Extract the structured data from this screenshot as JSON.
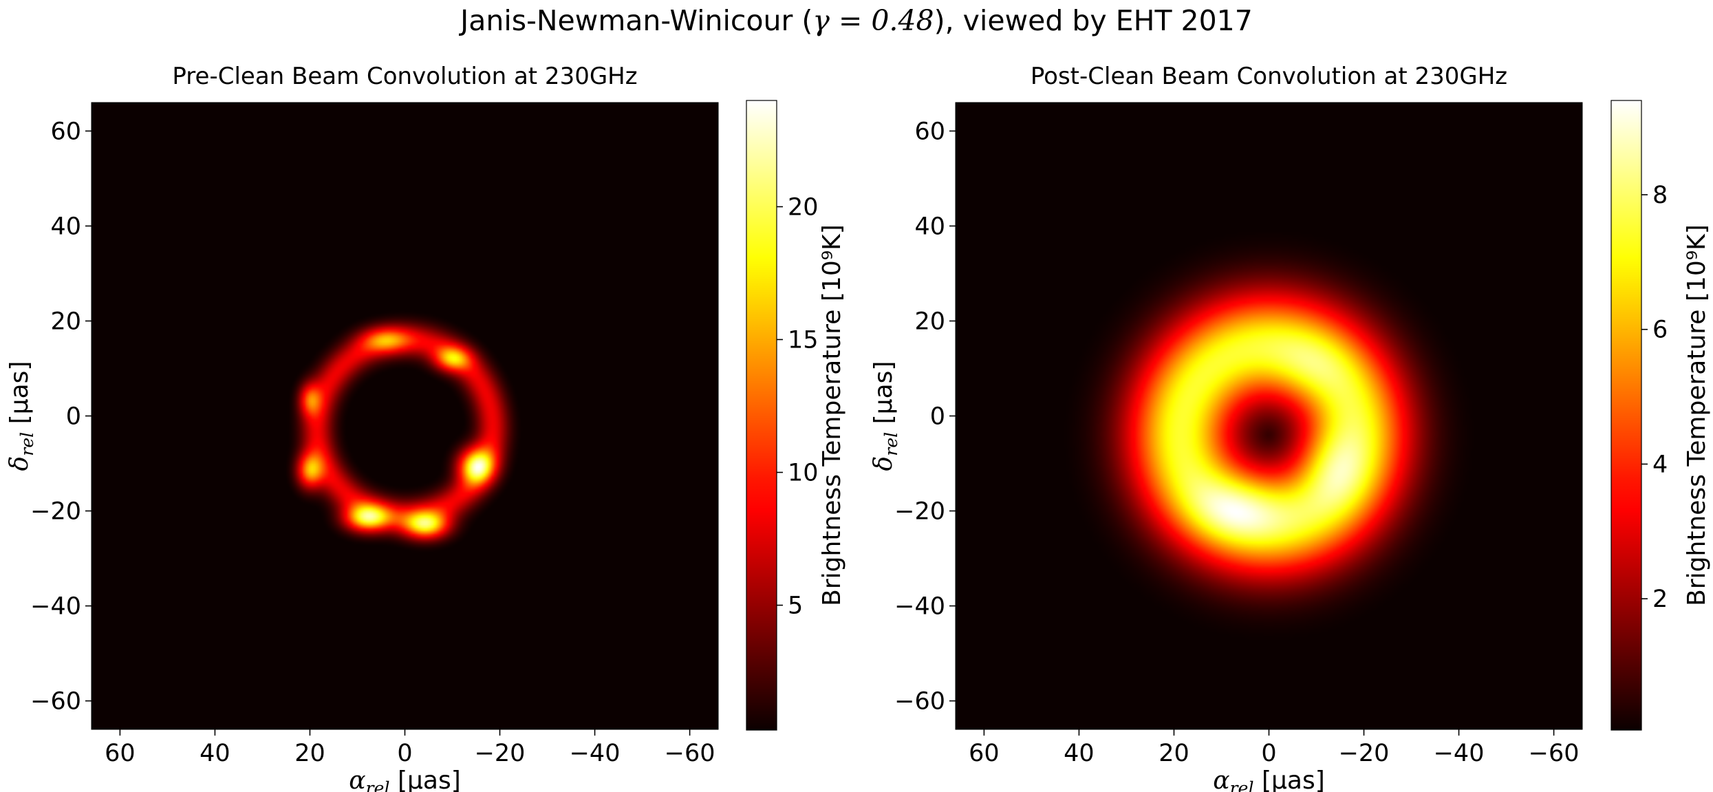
{
  "figure": {
    "suptitle_prefix": "Janis-Newman-Winicour (",
    "suptitle_math": "γ = 0.48",
    "suptitle_suffix": "), viewed by EHT 2017"
  },
  "colormap": {
    "name": "hot",
    "stops": [
      "#0b0000",
      "#ff0000",
      "#ffff00",
      "#ffffff"
    ]
  },
  "chart_data": [
    {
      "type": "heatmap",
      "title": "Pre-Clean Beam Convolution at 230GHz",
      "xlabel": "α_rel [μas]",
      "ylabel": "δ_rel [μas]",
      "xlim": [
        66,
        -66
      ],
      "ylim": [
        -66,
        66
      ],
      "xticks": [
        60,
        40,
        20,
        0,
        -20,
        -40,
        -60
      ],
      "xtick_labels": [
        "60",
        "40",
        "20",
        "0",
        "−20",
        "−40",
        "−60"
      ],
      "yticks": [
        60,
        40,
        20,
        0,
        -20,
        -40,
        -60
      ],
      "ytick_labels": [
        "60",
        "40",
        "20",
        "0",
        "−20",
        "−40",
        "−60"
      ],
      "colorbar": {
        "label": "Brightness Temperature [10⁹K]",
        "range": [
          0.3,
          24
        ],
        "ticks": [
          5,
          10,
          15,
          20
        ],
        "tick_labels": [
          "5",
          "10",
          "15",
          "20"
        ]
      },
      "features": {
        "ring": {
          "center": [
            0,
            -2.5
          ],
          "radius": 18.5,
          "width_sigma": 2.4,
          "peak": 11.5
        },
        "hotspots": [
          {
            "center": [
              8,
              -21.5
            ],
            "peak": 23,
            "sigma": [
              3.3,
              2.0
            ]
          },
          {
            "center": [
              -4.5,
              -23
            ],
            "peak": 23,
            "sigma": [
              3.3,
              2.0
            ]
          },
          {
            "center": [
              -15,
              -10.5
            ],
            "peak": 24,
            "sigma": [
              2.6,
              2.6
            ]
          },
          {
            "center": [
              20,
              -11.5
            ],
            "peak": 19,
            "sigma": [
              1.9,
              2.6
            ]
          },
          {
            "center": [
              20,
              3.5
            ],
            "peak": 13,
            "sigma": [
              1.6,
              2.4
            ]
          },
          {
            "center": [
              -10,
              12
            ],
            "peak": 15,
            "sigma": [
              2.6,
              1.8
            ]
          },
          {
            "center": [
              4,
              16
            ],
            "peak": 12,
            "sigma": [
              3.5,
              1.8
            ]
          }
        ]
      }
    },
    {
      "type": "heatmap",
      "title": "Post-Clean Beam Convolution at 230GHz",
      "xlabel": "α_rel [μas]",
      "ylabel": "δ_rel [μas]",
      "xlim": [
        66,
        -66
      ],
      "ylim": [
        -66,
        66
      ],
      "xticks": [
        60,
        40,
        20,
        0,
        -20,
        -40,
        -60
      ],
      "xtick_labels": [
        "60",
        "40",
        "20",
        "0",
        "−20",
        "−40",
        "−60"
      ],
      "yticks": [
        60,
        40,
        20,
        0,
        -20,
        -40,
        -60
      ],
      "ytick_labels": [
        "60",
        "40",
        "20",
        "0",
        "−20",
        "−40",
        "−60"
      ],
      "colorbar": {
        "label": "Brightness Temperature [10⁹K]",
        "range": [
          0.05,
          9.4
        ],
        "ticks": [
          2,
          4,
          6,
          8
        ],
        "tick_labels": [
          "2",
          "4",
          "6",
          "8"
        ]
      },
      "features": {
        "ring": {
          "center": [
            0,
            -4
          ],
          "radius": 18.5,
          "width_sigma": 8.0,
          "peak": 7.6
        },
        "hotspots": [
          {
            "center": [
              6,
              -19
            ],
            "peak": 2.1,
            "sigma": [
              7,
              5
            ]
          },
          {
            "center": [
              -13,
              -10
            ],
            "peak": 1.8,
            "sigma": [
              5,
              6
            ]
          },
          {
            "center": [
              -8,
              10
            ],
            "peak": 0.9,
            "sigma": [
              6,
              5
            ]
          }
        ]
      }
    }
  ]
}
